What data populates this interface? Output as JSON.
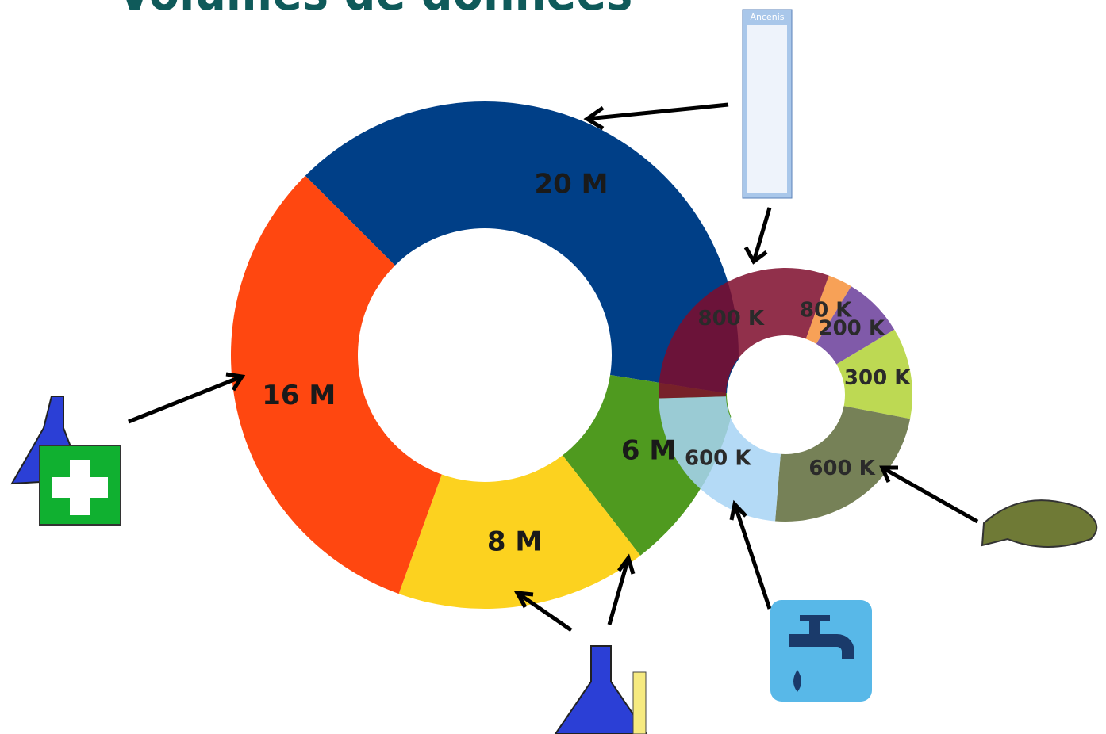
{
  "title": "Volumes de données",
  "gauge_label": "Ancenis",
  "chart_data": [
    {
      "type": "donut",
      "values": [
        20,
        6,
        8,
        16
      ],
      "value_labels": [
        "20 M",
        "6 M",
        "8 M",
        "16 M"
      ],
      "colors": [
        "#003f87",
        "#4f9a1f",
        "#fcd21f",
        "#ff4710"
      ]
    },
    {
      "type": "donut",
      "values": [
        80,
        200,
        300,
        600,
        600,
        800
      ],
      "value_labels": [
        "80 K",
        "200 K",
        "300 K",
        "600 K",
        "600 K",
        "800 K"
      ],
      "colors": [
        "#f6913a",
        "#6a3d9a",
        "#b2d235",
        "#5e6b3a",
        "#a7d3f5",
        "#7e0c2c"
      ]
    }
  ]
}
